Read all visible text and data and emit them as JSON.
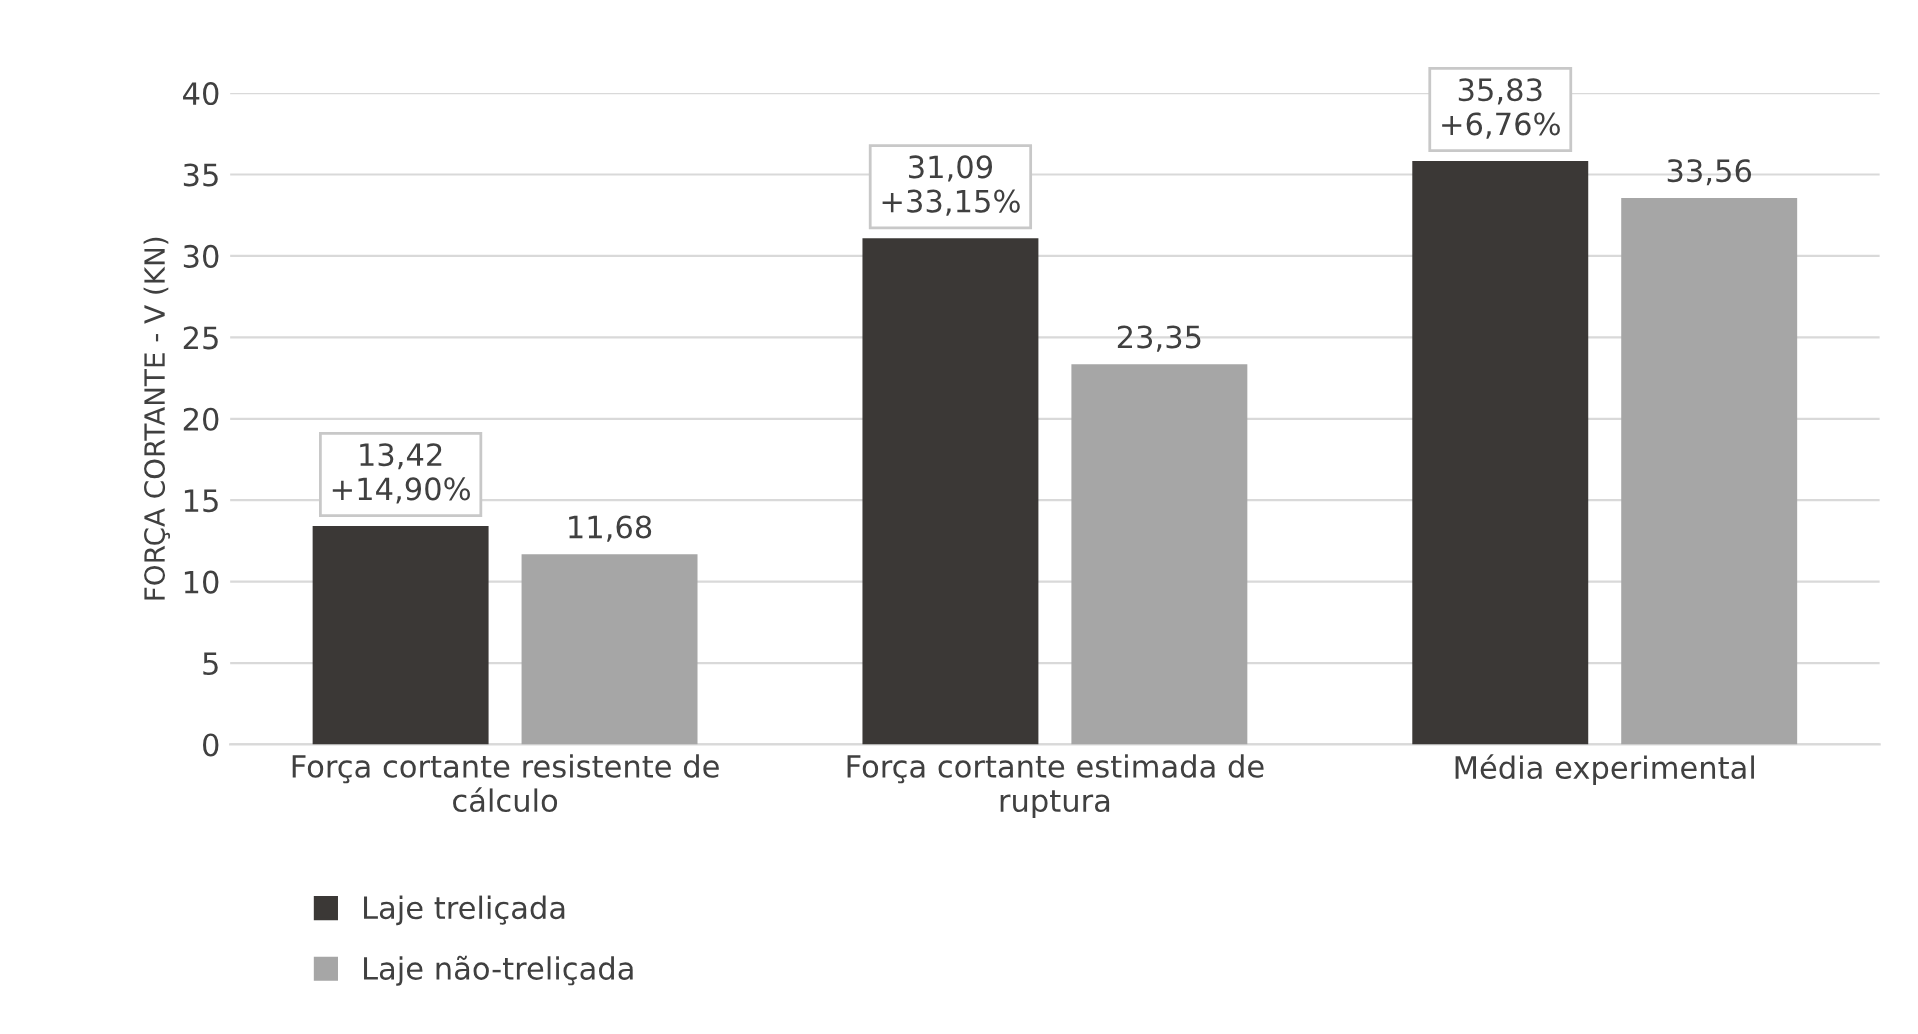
{
  "chart_data": {
    "type": "bar",
    "ylabel": "FORÇA CORTANTE - V (KN)",
    "categories": [
      "Força cortante resistente de\ncálculo",
      "Força cortante estimada de\nruptura",
      "Média experimental"
    ],
    "series": [
      {
        "name": "Laje treliçada",
        "color": "#3b3836",
        "values": [
          13.42,
          31.09,
          35.83
        ],
        "value_labels": [
          "13,42\n+14,90%",
          "31,09\n+33,15%",
          "35,83\n+6,76%"
        ]
      },
      {
        "name": "Laje não-treliçada",
        "color": "#a6a6a6",
        "values": [
          11.68,
          23.35,
          33.56
        ],
        "value_labels": [
          "11,68",
          "23,35",
          "33,56"
        ]
      }
    ],
    "ylim": [
      0,
      40
    ],
    "yticks": [
      0,
      5,
      10,
      15,
      20,
      25,
      30,
      35,
      40
    ],
    "grid": "y",
    "legend": "bottom left"
  }
}
